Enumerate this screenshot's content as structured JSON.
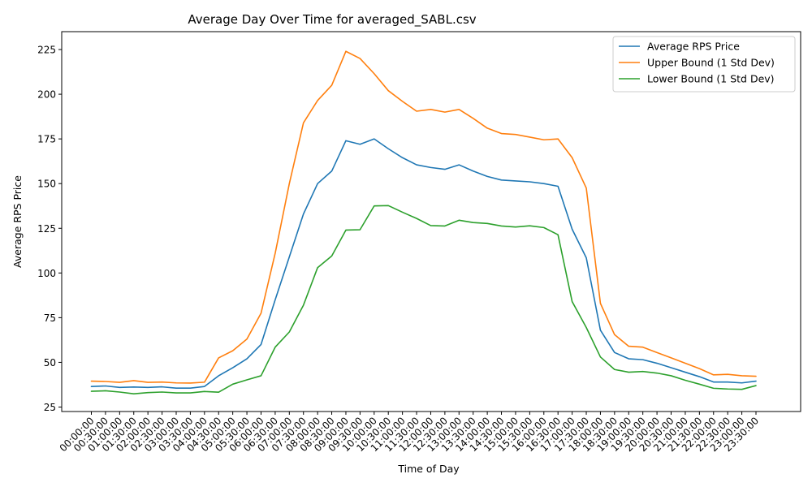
{
  "chart_data": {
    "type": "line",
    "title": "Average Day Over Time for averaged_SABL.csv",
    "xlabel": "Time of Day",
    "ylabel": "Average RPS Price",
    "ylim": [
      22.5,
      235
    ],
    "yticks": [
      25,
      50,
      75,
      100,
      125,
      150,
      175,
      200,
      225
    ],
    "grid": false,
    "legend_position": "top-right",
    "categories": [
      "00:00:00",
      "00:30:00",
      "01:00:00",
      "01:30:00",
      "02:00:00",
      "02:30:00",
      "03:00:00",
      "03:30:00",
      "04:00:00",
      "04:30:00",
      "05:00:00",
      "05:30:00",
      "06:00:00",
      "06:30:00",
      "07:00:00",
      "07:30:00",
      "08:00:00",
      "08:30:00",
      "09:00:00",
      "09:30:00",
      "10:00:00",
      "10:30:00",
      "11:00:00",
      "11:30:00",
      "12:00:00",
      "12:30:00",
      "13:00:00",
      "13:30:00",
      "14:00:00",
      "14:30:00",
      "15:00:00",
      "15:30:00",
      "16:00:00",
      "16:30:00",
      "17:00:00",
      "17:30:00",
      "18:00:00",
      "18:30:00",
      "19:00:00",
      "19:30:00",
      "20:00:00",
      "20:30:00",
      "21:00:00",
      "21:30:00",
      "22:00:00",
      "22:30:00",
      "23:00:00",
      "23:30:00"
    ],
    "series": [
      {
        "name": "Average RPS Price",
        "color": "#1f77b4",
        "values": [
          36.5,
          36.8,
          36.0,
          36.2,
          36.0,
          36.3,
          35.6,
          35.6,
          36.5,
          42.5,
          47.0,
          52.0,
          60.0,
          85.0,
          109.0,
          133.0,
          150.0,
          157.0,
          174.0,
          172.0,
          175.0,
          169.5,
          164.5,
          160.5,
          159.0,
          158.0,
          160.5,
          157.0,
          154.0,
          152.0,
          151.5,
          151.0,
          150.0,
          148.5,
          124.5,
          108.5,
          68.0,
          55.5,
          52.0,
          51.5,
          49.5,
          47.0,
          44.5,
          42.0,
          39.0,
          39.0,
          38.5,
          39.5
        ]
      },
      {
        "name": "Upper Bound (1 Std Dev)",
        "color": "#ff7f0e",
        "values": [
          39.5,
          39.3,
          38.8,
          39.8,
          38.8,
          39.0,
          38.5,
          38.4,
          38.9,
          52.5,
          56.5,
          63.0,
          77.5,
          111.0,
          150.0,
          184.0,
          196.5,
          205.0,
          224.0,
          220.0,
          211.5,
          202.0,
          196.0,
          190.5,
          191.5,
          190.0,
          191.5,
          186.5,
          181.0,
          178.0,
          177.5,
          176.0,
          174.5,
          175.0,
          164.5,
          147.5,
          83.0,
          65.5,
          59.0,
          58.5,
          55.5,
          52.5,
          49.5,
          46.5,
          43.0,
          43.3,
          42.5,
          42.2
        ]
      },
      {
        "name": "Lower Bound (1 Std Dev)",
        "color": "#2ca02c",
        "values": [
          33.8,
          34.1,
          33.4,
          32.4,
          33.1,
          33.4,
          32.9,
          32.9,
          33.7,
          33.3,
          37.8,
          40.2,
          42.5,
          58.5,
          67.0,
          82.0,
          103.0,
          109.5,
          124.0,
          124.2,
          137.5,
          137.7,
          134.0,
          130.5,
          126.5,
          126.3,
          129.5,
          128.2,
          127.7,
          126.3,
          125.7,
          126.4,
          125.4,
          121.4,
          84.0,
          69.5,
          53.0,
          46.0,
          44.5,
          44.9,
          44.0,
          42.5,
          40.0,
          37.8,
          35.5,
          35.1,
          34.9,
          37.0
        ]
      }
    ]
  }
}
